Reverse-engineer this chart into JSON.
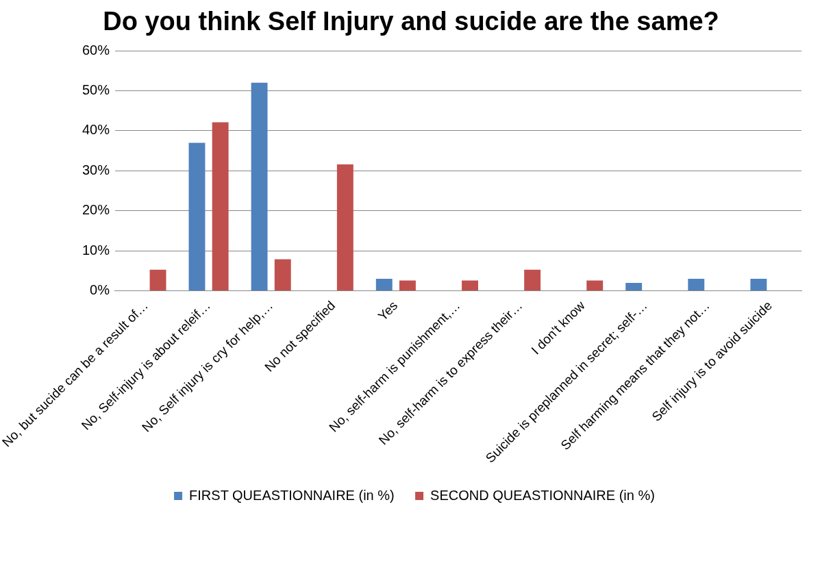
{
  "chart_data": {
    "type": "bar",
    "title": "Do you think Self Injury and sucide are the same?",
    "categories": [
      "No, but sucide can be a result of…",
      "No, Self-injury is about releif…",
      "No, Self injury is cry for help,…",
      "No not specified",
      "Yes",
      "No, self-harm is punishment,…",
      "No, self-harm is to express their…",
      "I don't know",
      "Suicide is preplanned in secret; self-…",
      "Self harming means that they not…",
      "Self injury is to avoid suicide"
    ],
    "series": [
      {
        "name": "FIRST QUEASTIONNAIRE (in %)",
        "color": "#4f81bd",
        "values": [
          null,
          37,
          52,
          null,
          3,
          null,
          null,
          null,
          2,
          3,
          3
        ]
      },
      {
        "name": "SECOND QUEASTIONNAIRE (in %)",
        "color": "#c0504d",
        "values": [
          5.3,
          42.1,
          7.9,
          31.6,
          2.6,
          2.6,
          5.3,
          2.6,
          null,
          null,
          null
        ]
      }
    ],
    "ylim": [
      0,
      60
    ],
    "yticks": [
      {
        "value": 0,
        "label": "0%"
      },
      {
        "value": 10,
        "label": "10%"
      },
      {
        "value": 20,
        "label": "20%"
      },
      {
        "value": 30,
        "label": "30%"
      },
      {
        "value": 40,
        "label": "40%"
      },
      {
        "value": 50,
        "label": "50%"
      },
      {
        "value": 60,
        "label": "60%"
      }
    ],
    "grid": "y",
    "legend": "bottom"
  }
}
